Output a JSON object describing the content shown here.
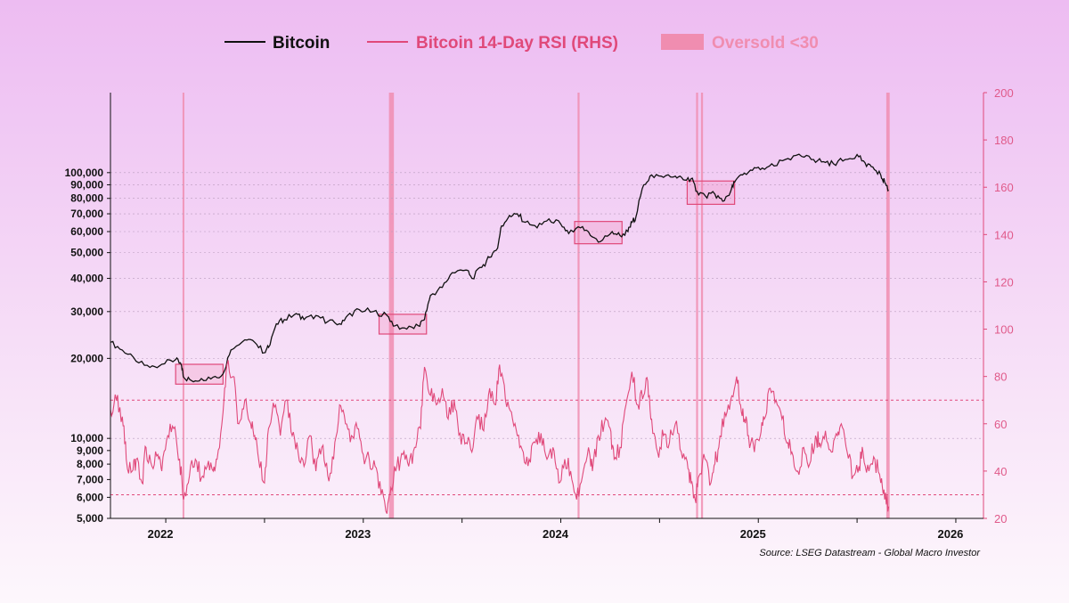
{
  "legend": {
    "items": [
      {
        "label": "Bitcoin",
        "color": "#111111",
        "kind": "line"
      },
      {
        "label": "Bitcoin 14-Day RSI (RHS)",
        "color": "#e0497a",
        "kind": "line"
      },
      {
        "label": "Oversold <30",
        "color": "#f08db0",
        "kind": "band"
      }
    ]
  },
  "source": "Source: LSEG Datastream - Global Macro Investor",
  "chart_data": {
    "type": "line",
    "x_ticks": [
      "2022",
      "2023",
      "2024",
      "2025",
      "2026"
    ],
    "x_range": [
      2021.72,
      2026.14
    ],
    "left_axis": {
      "scale": "log",
      "ylim": [
        5000,
        200000
      ],
      "ticks": [
        {
          "value": 5000,
          "label": "5,000"
        },
        {
          "value": 6000,
          "label": "6,000"
        },
        {
          "value": 7000,
          "label": "7,000"
        },
        {
          "value": 8000,
          "label": "8,000"
        },
        {
          "value": 9000,
          "label": "9,000"
        },
        {
          "value": 10000,
          "label": "10,000"
        },
        {
          "value": 20000,
          "label": "20,000"
        },
        {
          "value": 30000,
          "label": "30,000"
        },
        {
          "value": 40000,
          "label": "40,000"
        },
        {
          "value": 50000,
          "label": "50,000"
        },
        {
          "value": 60000,
          "label": "60,000"
        },
        {
          "value": 70000,
          "label": "70,000"
        },
        {
          "value": 80000,
          "label": "80,000"
        },
        {
          "value": 90000,
          "label": "90,000"
        },
        {
          "value": 100000,
          "label": "100,000"
        }
      ]
    },
    "right_axis": {
      "ylim": [
        20,
        200
      ],
      "ticks": [
        20,
        40,
        60,
        80,
        100,
        120,
        140,
        160,
        180,
        200
      ],
      "reference_lines": [
        30,
        70
      ]
    },
    "series": [
      {
        "name": "Bitcoin",
        "axis": "left",
        "color": "#111111",
        "points": [
          [
            2021.72,
            23000
          ],
          [
            2021.78,
            21500
          ],
          [
            2021.85,
            19500
          ],
          [
            2021.92,
            18500
          ],
          [
            2021.98,
            19000
          ],
          [
            2022.05,
            19800
          ],
          [
            2022.08,
            18800
          ],
          [
            2022.09,
            17000
          ],
          [
            2022.13,
            16500
          ],
          [
            2022.18,
            16800
          ],
          [
            2022.24,
            17000
          ],
          [
            2022.29,
            17500
          ],
          [
            2022.33,
            21500
          ],
          [
            2022.4,
            23500
          ],
          [
            2022.45,
            23000
          ],
          [
            2022.5,
            21000
          ],
          [
            2022.52,
            22000
          ],
          [
            2022.56,
            27000
          ],
          [
            2022.6,
            28000
          ],
          [
            2022.66,
            29500
          ],
          [
            2022.7,
            28000
          ],
          [
            2022.76,
            29000
          ],
          [
            2022.82,
            27500
          ],
          [
            2022.88,
            27000
          ],
          [
            2022.92,
            29000
          ],
          [
            2022.98,
            30500
          ],
          [
            2023.05,
            30000
          ],
          [
            2023.12,
            29000
          ],
          [
            2023.16,
            26500
          ],
          [
            2023.22,
            25800
          ],
          [
            2023.28,
            26500
          ],
          [
            2023.31,
            28000
          ],
          [
            2023.34,
            34500
          ],
          [
            2023.4,
            37000
          ],
          [
            2023.45,
            42000
          ],
          [
            2023.52,
            43000
          ],
          [
            2023.55,
            40000
          ],
          [
            2023.6,
            44000
          ],
          [
            2023.64,
            48000
          ],
          [
            2023.68,
            52000
          ],
          [
            2023.7,
            63000
          ],
          [
            2023.74,
            69000
          ],
          [
            2023.78,
            70000
          ],
          [
            2023.82,
            65000
          ],
          [
            2023.88,
            62000
          ],
          [
            2023.94,
            67000
          ],
          [
            2024.0,
            64000
          ],
          [
            2024.04,
            59000
          ],
          [
            2024.1,
            62000
          ],
          [
            2024.15,
            58000
          ],
          [
            2024.2,
            55000
          ],
          [
            2024.26,
            60000
          ],
          [
            2024.3,
            58000
          ],
          [
            2024.34,
            60000
          ],
          [
            2024.36,
            65000
          ],
          [
            2024.38,
            68000
          ],
          [
            2024.42,
            90000
          ],
          [
            2024.46,
            98000
          ],
          [
            2024.52,
            96000
          ],
          [
            2024.58,
            97000
          ],
          [
            2024.62,
            94000
          ],
          [
            2024.66,
            95000
          ],
          [
            2024.69,
            85000
          ],
          [
            2024.73,
            82000
          ],
          [
            2024.78,
            83000
          ],
          [
            2024.82,
            78000
          ],
          [
            2024.86,
            85000
          ],
          [
            2024.88,
            92000
          ],
          [
            2024.92,
            98000
          ],
          [
            2024.97,
            102000
          ],
          [
            2025.02,
            104000
          ],
          [
            2025.08,
            106000
          ],
          [
            2025.15,
            113000
          ],
          [
            2025.22,
            115000
          ],
          [
            2025.28,
            112000
          ],
          [
            2025.33,
            110000
          ],
          [
            2025.38,
            108000
          ],
          [
            2025.44,
            112000
          ],
          [
            2025.5,
            117000
          ],
          [
            2025.54,
            109000
          ],
          [
            2025.58,
            105000
          ],
          [
            2025.62,
            98000
          ],
          [
            2025.64,
            92000
          ],
          [
            2025.66,
            86000
          ]
        ]
      },
      {
        "name": "Bitcoin 14-Day RSI (RHS)",
        "axis": "right",
        "color": "#e0497a",
        "points": [
          [
            2021.72,
            66
          ],
          [
            2021.75,
            70
          ],
          [
            2021.78,
            63
          ],
          [
            2021.8,
            45
          ],
          [
            2021.83,
            40
          ],
          [
            2021.85,
            45
          ],
          [
            2021.88,
            35
          ],
          [
            2021.9,
            50
          ],
          [
            2021.93,
            42
          ],
          [
            2021.96,
            47
          ],
          [
            2021.98,
            40
          ],
          [
            2022.01,
            55
          ],
          [
            2022.04,
            58
          ],
          [
            2022.07,
            45
          ],
          [
            2022.09,
            28
          ],
          [
            2022.12,
            38
          ],
          [
            2022.15,
            45
          ],
          [
            2022.18,
            37
          ],
          [
            2022.21,
            42
          ],
          [
            2022.24,
            40
          ],
          [
            2022.26,
            45
          ],
          [
            2022.29,
            65
          ],
          [
            2022.31,
            85
          ],
          [
            2022.34,
            80
          ],
          [
            2022.37,
            60
          ],
          [
            2022.4,
            70
          ],
          [
            2022.43,
            60
          ],
          [
            2022.45,
            55
          ],
          [
            2022.47,
            45
          ],
          [
            2022.5,
            35
          ],
          [
            2022.52,
            58
          ],
          [
            2022.55,
            67
          ],
          [
            2022.58,
            55
          ],
          [
            2022.61,
            70
          ],
          [
            2022.64,
            55
          ],
          [
            2022.67,
            48
          ],
          [
            2022.7,
            42
          ],
          [
            2022.73,
            55
          ],
          [
            2022.76,
            40
          ],
          [
            2022.79,
            50
          ],
          [
            2022.82,
            38
          ],
          [
            2022.85,
            45
          ],
          [
            2022.88,
            68
          ],
          [
            2022.91,
            60
          ],
          [
            2022.94,
            55
          ],
          [
            2022.97,
            58
          ],
          [
            2023.0,
            47
          ],
          [
            2023.03,
            45
          ],
          [
            2023.06,
            42
          ],
          [
            2023.09,
            30
          ],
          [
            2023.12,
            22
          ],
          [
            2023.14,
            33
          ],
          [
            2023.17,
            42
          ],
          [
            2023.2,
            47
          ],
          [
            2023.23,
            42
          ],
          [
            2023.26,
            50
          ],
          [
            2023.29,
            58
          ],
          [
            2023.31,
            84
          ],
          [
            2023.34,
            72
          ],
          [
            2023.37,
            68
          ],
          [
            2023.4,
            75
          ],
          [
            2023.43,
            62
          ],
          [
            2023.46,
            70
          ],
          [
            2023.49,
            56
          ],
          [
            2023.52,
            52
          ],
          [
            2023.55,
            48
          ],
          [
            2023.58,
            62
          ],
          [
            2023.61,
            57
          ],
          [
            2023.64,
            75
          ],
          [
            2023.67,
            68
          ],
          [
            2023.69,
            85
          ],
          [
            2023.72,
            70
          ],
          [
            2023.75,
            65
          ],
          [
            2023.78,
            55
          ],
          [
            2023.81,
            48
          ],
          [
            2023.84,
            45
          ],
          [
            2023.87,
            52
          ],
          [
            2023.9,
            56
          ],
          [
            2023.93,
            45
          ],
          [
            2023.96,
            50
          ],
          [
            2023.99,
            35
          ],
          [
            2024.02,
            45
          ],
          [
            2024.05,
            40
          ],
          [
            2024.08,
            28
          ],
          [
            2024.11,
            38
          ],
          [
            2024.14,
            50
          ],
          [
            2024.16,
            40
          ],
          [
            2024.19,
            55
          ],
          [
            2024.22,
            60
          ],
          [
            2024.25,
            58
          ],
          [
            2024.27,
            45
          ],
          [
            2024.3,
            50
          ],
          [
            2024.33,
            68
          ],
          [
            2024.36,
            82
          ],
          [
            2024.39,
            68
          ],
          [
            2024.42,
            72
          ],
          [
            2024.44,
            78
          ],
          [
            2024.46,
            62
          ],
          [
            2024.49,
            48
          ],
          [
            2024.52,
            55
          ],
          [
            2024.55,
            52
          ],
          [
            2024.58,
            60
          ],
          [
            2024.61,
            48
          ],
          [
            2024.64,
            44
          ],
          [
            2024.66,
            35
          ],
          [
            2024.68,
            28
          ],
          [
            2024.7,
            38
          ],
          [
            2024.73,
            45
          ],
          [
            2024.76,
            35
          ],
          [
            2024.78,
            43
          ],
          [
            2024.8,
            50
          ],
          [
            2024.83,
            65
          ],
          [
            2024.86,
            70
          ],
          [
            2024.89,
            80
          ],
          [
            2024.91,
            68
          ],
          [
            2024.93,
            62
          ],
          [
            2024.95,
            55
          ],
          [
            2024.98,
            48
          ],
          [
            2025.01,
            55
          ],
          [
            2025.03,
            62
          ],
          [
            2025.06,
            75
          ],
          [
            2025.09,
            70
          ],
          [
            2025.12,
            62
          ],
          [
            2025.15,
            52
          ],
          [
            2025.17,
            48
          ],
          [
            2025.2,
            40
          ],
          [
            2025.23,
            50
          ],
          [
            2025.26,
            43
          ],
          [
            2025.29,
            55
          ],
          [
            2025.31,
            52
          ],
          [
            2025.34,
            57
          ],
          [
            2025.37,
            48
          ],
          [
            2025.4,
            55
          ],
          [
            2025.42,
            60
          ],
          [
            2025.45,
            48
          ],
          [
            2025.48,
            38
          ],
          [
            2025.51,
            42
          ],
          [
            2025.53,
            48
          ],
          [
            2025.56,
            40
          ],
          [
            2025.59,
            45
          ],
          [
            2025.62,
            35
          ],
          [
            2025.64,
            28
          ],
          [
            2025.66,
            25
          ]
        ]
      }
    ],
    "oversold_bands": [
      [
        2022.085,
        2022.09
      ],
      [
        2023.13,
        2023.155
      ],
      [
        2024.085,
        2024.095
      ],
      [
        2024.685,
        2024.695
      ],
      [
        2024.71,
        2024.72
      ],
      [
        2025.648,
        2025.665
      ]
    ],
    "highlight_boxes": [
      {
        "x": [
          2022.05,
          2022.29
        ],
        "y": [
          16000,
          19000
        ]
      },
      {
        "x": [
          2023.08,
          2023.32
        ],
        "y": [
          24700,
          29300
        ]
      },
      {
        "x": [
          2024.07,
          2024.31
        ],
        "y": [
          54000,
          65500
        ]
      },
      {
        "x": [
          2024.64,
          2024.88
        ],
        "y": [
          76000,
          93000
        ]
      }
    ]
  }
}
